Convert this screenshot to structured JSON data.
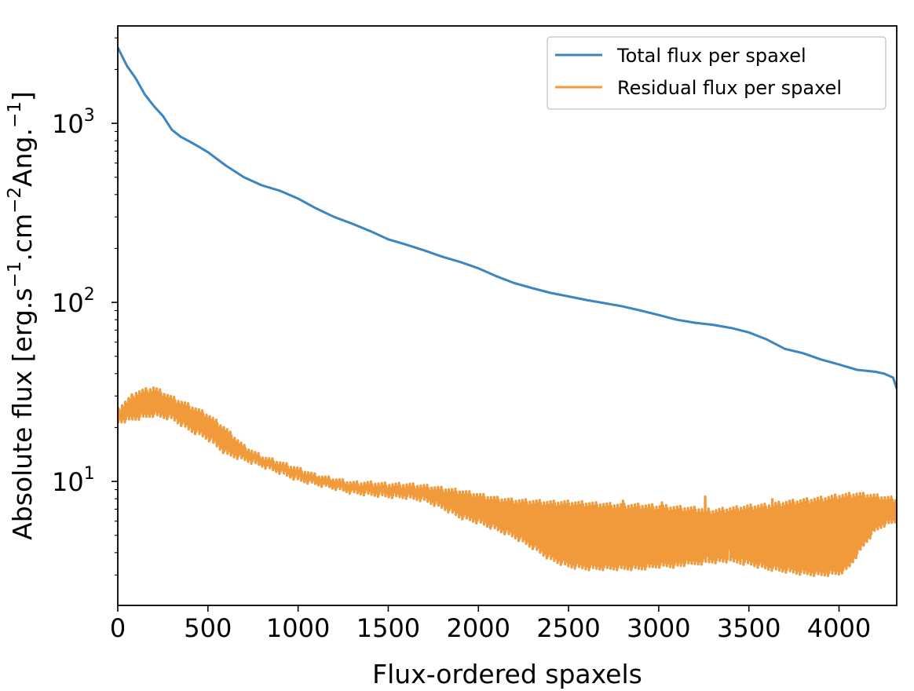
{
  "chart_data": {
    "type": "line",
    "title": "",
    "xlabel": "Flux-ordered spaxels",
    "ylabel_parts": [
      "Absolute flux [erg.s",
      "−1",
      ".cm",
      "−2",
      "Ang.",
      "−1",
      "]"
    ],
    "yscale": "log",
    "xlim": [
      0,
      4320
    ],
    "ylim": [
      2.03,
      3500
    ],
    "x_ticks": [
      0,
      500,
      1000,
      1500,
      2000,
      2500,
      3000,
      3500,
      4000
    ],
    "x_tick_labels": [
      "0",
      "500",
      "1000",
      "1500",
      "2000",
      "2500",
      "3000",
      "3500",
      "4000"
    ],
    "y_ticks": [
      10,
      100,
      1000
    ],
    "y_tick_labels": [
      {
        "base": "10",
        "exp": "1"
      },
      {
        "base": "10",
        "exp": "2"
      },
      {
        "base": "10",
        "exp": "3"
      }
    ],
    "grid": false,
    "legend_position": "top-right",
    "series": [
      {
        "name": "Total flux per spaxel",
        "color": "#3d85be",
        "x": [
          0,
          50,
          100,
          150,
          200,
          250,
          300,
          350,
          400,
          450,
          500,
          600,
          700,
          800,
          900,
          1000,
          1100,
          1200,
          1300,
          1400,
          1500,
          1600,
          1700,
          1800,
          1900,
          2000,
          2100,
          2200,
          2300,
          2400,
          2500,
          2600,
          2700,
          2800,
          2900,
          3000,
          3100,
          3200,
          3300,
          3400,
          3500,
          3600,
          3700,
          3800,
          3900,
          4000,
          4100,
          4200,
          4250,
          4300,
          4320
        ],
        "values": [
          2650,
          2100,
          1780,
          1450,
          1250,
          1100,
          920,
          840,
          790,
          740,
          690,
          580,
          500,
          450,
          420,
          380,
          335,
          300,
          275,
          250,
          225,
          210,
          195,
          180,
          168,
          155,
          140,
          128,
          120,
          113,
          108,
          103,
          99,
          95,
          90,
          85,
          80,
          77,
          75,
          72,
          68,
          62,
          55,
          52,
          48,
          45,
          42,
          41,
          40,
          38,
          33
        ]
      },
      {
        "name": "Residual flux per spaxel",
        "color": "#f19a3b",
        "x": [
          0,
          100,
          200,
          300,
          400,
          500,
          600,
          700,
          800,
          900,
          1000,
          1100,
          1200,
          1300,
          1400,
          1500,
          1600,
          1700,
          1800,
          1900,
          2000,
          2100,
          2200,
          2300,
          2400,
          2500,
          2600,
          2700,
          2800,
          2900,
          3000,
          3100,
          3200,
          3300,
          3400,
          3500,
          3600,
          3700,
          3800,
          3900,
          4000,
          4050,
          4100,
          4150,
          4200,
          4250,
          4300,
          4320
        ],
        "upper": [
          26,
          32,
          34,
          30,
          27,
          24,
          20,
          16,
          14,
          13,
          12,
          11,
          10.5,
          10,
          10,
          9.8,
          9.8,
          9.6,
          9.3,
          9.0,
          8.6,
          8.2,
          8.0,
          7.9,
          7.8,
          7.8,
          7.7,
          7.6,
          7.5,
          7.5,
          7.4,
          7.3,
          7.2,
          7.0,
          7.2,
          7.4,
          7.5,
          7.8,
          8.0,
          8.2,
          8.5,
          8.6,
          8.7,
          8.6,
          8.5,
          8.3,
          8.2,
          8.0
        ],
        "lower": [
          21,
          22,
          23,
          22,
          19,
          17,
          14,
          13,
          12,
          11,
          10,
          9.5,
          9,
          8.5,
          8.3,
          8.1,
          8.0,
          7.7,
          7.0,
          6.2,
          5.8,
          5.3,
          4.8,
          4.2,
          3.6,
          3.3,
          3.2,
          3.2,
          3.2,
          3.2,
          3.3,
          3.3,
          3.4,
          3.5,
          3.5,
          3.4,
          3.2,
          3.1,
          3.0,
          2.95,
          3.0,
          3.2,
          3.8,
          4.5,
          5.2,
          5.6,
          5.8,
          5.9
        ],
        "dips": [
          [
            3160,
            3.8
          ],
          [
            3265,
            3.6
          ],
          [
            3390,
            4.2
          ],
          [
            3460,
            3.9
          ]
        ],
        "spikes": [
          [
            2800,
            8.5
          ],
          [
            3020,
            8.4
          ],
          [
            3260,
            8.3
          ],
          [
            3630,
            8.1
          ]
        ]
      }
    ]
  }
}
